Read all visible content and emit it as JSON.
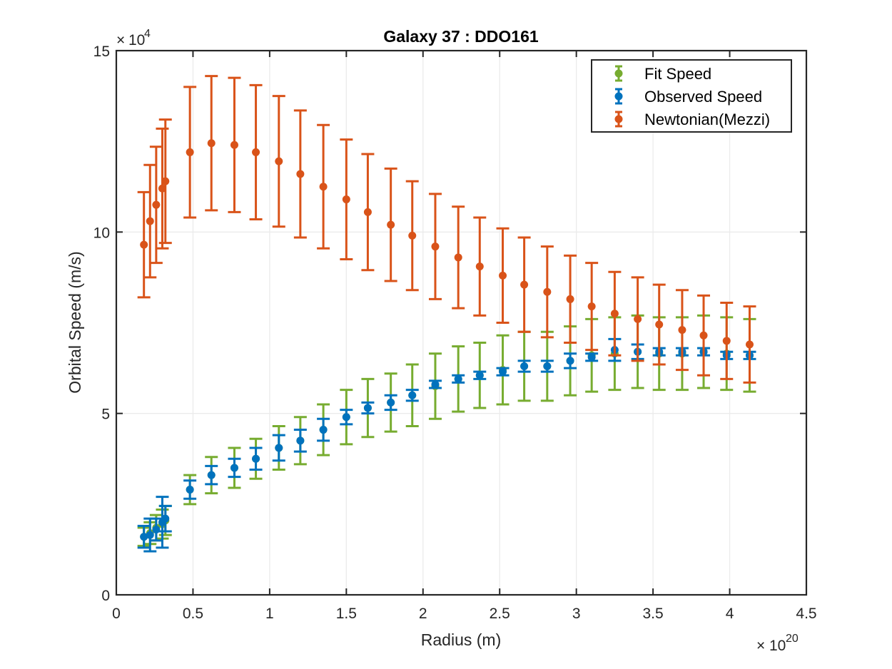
{
  "chart_data": {
    "type": "scatter",
    "title": "Galaxy 37 : DDO161",
    "xlabel": "Radius (m)",
    "ylabel": "Orbital Speed (m/s)",
    "x_multiplier": {
      "base": "10",
      "exponent": "20"
    },
    "y_multiplier": {
      "base": "10",
      "exponent": "4"
    },
    "xlim": [
      0,
      4.5
    ],
    "ylim": [
      0,
      15
    ],
    "xticks": [
      0,
      0.5,
      1,
      1.5,
      2,
      2.5,
      3,
      3.5,
      4,
      4.5
    ],
    "xtick_labels": [
      "0",
      "0.5",
      "1",
      "1.5",
      "2",
      "2.5",
      "3",
      "3.5",
      "4",
      "4.5"
    ],
    "yticks": [
      0,
      5,
      10,
      15
    ],
    "ytick_labels": [
      "0",
      "5",
      "10",
      "15"
    ],
    "grid": true,
    "legend_position": "top-right",
    "x": [
      0.18,
      0.22,
      0.26,
      0.3,
      0.32,
      0.48,
      0.62,
      0.77,
      0.91,
      1.06,
      1.2,
      1.35,
      1.5,
      1.64,
      1.79,
      1.93,
      2.08,
      2.23,
      2.37,
      2.52,
      2.66,
      2.81,
      2.96,
      3.1,
      3.25,
      3.4,
      3.54,
      3.69,
      3.83,
      3.98,
      4.13
    ],
    "series": [
      {
        "name": "Fit Speed",
        "color": "#77AC30",
        "values": [
          1.6,
          1.7,
          1.85,
          1.95,
          2.05,
          2.9,
          3.3,
          3.5,
          3.75,
          4.05,
          4.25,
          4.55,
          4.9,
          5.15,
          5.3,
          5.5,
          5.75,
          5.95,
          6.05,
          6.2,
          6.3,
          6.3,
          6.45,
          6.6,
          6.65,
          6.7,
          6.65,
          6.65,
          6.7,
          6.65,
          6.6
        ],
        "err": [
          0.25,
          0.3,
          0.35,
          0.4,
          0.4,
          0.4,
          0.5,
          0.55,
          0.55,
          0.6,
          0.65,
          0.7,
          0.75,
          0.8,
          0.8,
          0.85,
          0.9,
          0.9,
          0.9,
          0.95,
          0.95,
          0.95,
          0.95,
          1.0,
          1.0,
          1.0,
          1.0,
          1.0,
          1.0,
          1.0,
          1.0
        ]
      },
      {
        "name": "Observed Speed",
        "color": "#0072BD",
        "values": [
          1.6,
          1.65,
          1.8,
          2.0,
          2.1,
          2.9,
          3.3,
          3.5,
          3.75,
          4.05,
          4.25,
          4.55,
          4.9,
          5.15,
          5.3,
          5.5,
          5.8,
          5.95,
          6.05,
          6.15,
          6.3,
          6.3,
          6.45,
          6.55,
          6.75,
          6.7,
          6.7,
          6.7,
          6.7,
          6.6,
          6.6
        ],
        "err": [
          0.3,
          0.45,
          0.3,
          0.7,
          0.35,
          0.25,
          0.25,
          0.25,
          0.3,
          0.35,
          0.3,
          0.3,
          0.2,
          0.15,
          0.2,
          0.15,
          0.1,
          0.1,
          0.1,
          0.1,
          0.15,
          0.15,
          0.2,
          0.1,
          0.3,
          0.2,
          0.1,
          0.1,
          0.1,
          0.1,
          0.1
        ]
      },
      {
        "name": "Newtonian(Mezzi)",
        "color": "#D95319",
        "values": [
          9.65,
          10.3,
          10.75,
          11.2,
          11.4,
          12.2,
          12.45,
          12.4,
          12.2,
          11.95,
          11.6,
          11.25,
          10.9,
          10.55,
          10.2,
          9.9,
          9.6,
          9.3,
          9.05,
          8.8,
          8.55,
          8.35,
          8.15,
          7.95,
          7.75,
          7.6,
          7.45,
          7.3,
          7.15,
          7.0,
          6.9
        ],
        "err": [
          1.45,
          1.55,
          1.6,
          1.65,
          1.7,
          1.8,
          1.85,
          1.85,
          1.85,
          1.8,
          1.75,
          1.7,
          1.65,
          1.6,
          1.55,
          1.5,
          1.45,
          1.4,
          1.35,
          1.3,
          1.3,
          1.25,
          1.2,
          1.2,
          1.15,
          1.15,
          1.1,
          1.1,
          1.1,
          1.05,
          1.05
        ]
      }
    ]
  }
}
